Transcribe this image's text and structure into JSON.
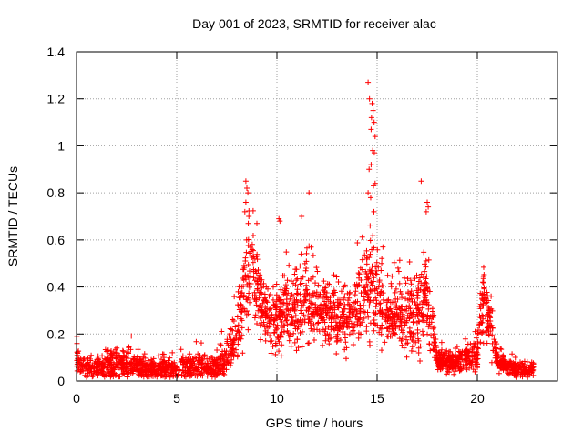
{
  "chart_data": {
    "type": "scatter",
    "title": "Day 001 of 2023, SRMTID for receiver alac",
    "xlabel": "GPS time / hours",
    "ylabel": "SRMTID / TECUs",
    "xlim": [
      0,
      24
    ],
    "ylim": [
      0,
      1.4
    ],
    "x_ticks": [
      0,
      5,
      10,
      15,
      20
    ],
    "x_tick_labels": [
      "0",
      "5",
      "10",
      "15",
      "20"
    ],
    "y_ticks": [
      0,
      0.2,
      0.4,
      0.6,
      0.8,
      1.0,
      1.2,
      1.4
    ],
    "y_tick_labels": [
      "0",
      "0.2",
      "0.4",
      "0.6",
      "0.8",
      "1",
      "1.2",
      "1.4"
    ],
    "grid": true,
    "marker": "+",
    "series": [
      {
        "name": "SRMTID",
        "color": "#ff0000",
        "envelope": {
          "hours": [
            0,
            0.1,
            0.5,
            1,
            1.5,
            2,
            2.5,
            3,
            3.5,
            4,
            4.5,
            5,
            5.5,
            6,
            6.5,
            7,
            7.5,
            7.8,
            8,
            8.2,
            8.4,
            8.6,
            8.8,
            9,
            9.2,
            9.5,
            10,
            10.5,
            11,
            11.5,
            12,
            12.5,
            13,
            13.5,
            14,
            14.3,
            14.6,
            14.8,
            15,
            15.3,
            15.6,
            16,
            16.5,
            17,
            17.2,
            17.4,
            17.6,
            18,
            18.5,
            19,
            19.5,
            20,
            20.2,
            20.4,
            20.6,
            21,
            21.5,
            22,
            22.5,
            22.8
          ],
          "median": [
            0.12,
            0.07,
            0.05,
            0.05,
            0.06,
            0.07,
            0.07,
            0.06,
            0.05,
            0.05,
            0.05,
            0.05,
            0.06,
            0.07,
            0.05,
            0.06,
            0.1,
            0.15,
            0.2,
            0.28,
            0.38,
            0.45,
            0.45,
            0.4,
            0.3,
            0.27,
            0.26,
            0.3,
            0.32,
            0.34,
            0.3,
            0.28,
            0.27,
            0.26,
            0.3,
            0.34,
            0.38,
            0.38,
            0.35,
            0.3,
            0.28,
            0.27,
            0.27,
            0.3,
            0.34,
            0.38,
            0.28,
            0.1,
            0.08,
            0.08,
            0.09,
            0.12,
            0.3,
            0.35,
            0.25,
            0.08,
            0.06,
            0.05,
            0.05,
            0.05
          ],
          "spread": [
            0.06,
            0.04,
            0.03,
            0.03,
            0.04,
            0.04,
            0.05,
            0.04,
            0.03,
            0.03,
            0.03,
            0.03,
            0.04,
            0.04,
            0.03,
            0.03,
            0.05,
            0.06,
            0.08,
            0.1,
            0.14,
            0.15,
            0.13,
            0.12,
            0.1,
            0.08,
            0.1,
            0.11,
            0.12,
            0.12,
            0.1,
            0.1,
            0.09,
            0.09,
            0.1,
            0.12,
            0.14,
            0.14,
            0.12,
            0.1,
            0.09,
            0.09,
            0.1,
            0.11,
            0.14,
            0.14,
            0.1,
            0.04,
            0.03,
            0.04,
            0.04,
            0.06,
            0.1,
            0.1,
            0.08,
            0.03,
            0.02,
            0.02,
            0.02,
            0.02
          ],
          "count": 2600,
          "seed": 42
        },
        "highlight_points": [
          {
            "x": 14.55,
            "y": 1.27
          },
          {
            "x": 14.62,
            "y": 1.2
          },
          {
            "x": 14.75,
            "y": 1.18
          },
          {
            "x": 14.8,
            "y": 1.15
          },
          {
            "x": 14.72,
            "y": 1.12
          },
          {
            "x": 14.85,
            "y": 1.1
          },
          {
            "x": 14.7,
            "y": 1.07
          },
          {
            "x": 14.9,
            "y": 1.04
          },
          {
            "x": 14.78,
            "y": 0.98
          },
          {
            "x": 14.86,
            "y": 0.97
          },
          {
            "x": 14.6,
            "y": 0.9
          },
          {
            "x": 14.7,
            "y": 0.92
          },
          {
            "x": 14.82,
            "y": 0.83
          },
          {
            "x": 14.9,
            "y": 0.84
          },
          {
            "x": 14.55,
            "y": 0.8
          },
          {
            "x": 14.68,
            "y": 0.78
          },
          {
            "x": 14.84,
            "y": 0.72
          },
          {
            "x": 14.65,
            "y": 0.66
          },
          {
            "x": 8.45,
            "y": 0.85
          },
          {
            "x": 8.5,
            "y": 0.82
          },
          {
            "x": 8.55,
            "y": 0.8
          },
          {
            "x": 8.45,
            "y": 0.76
          },
          {
            "x": 8.4,
            "y": 0.72
          },
          {
            "x": 8.6,
            "y": 0.7
          },
          {
            "x": 11.6,
            "y": 0.8
          },
          {
            "x": 17.2,
            "y": 0.85
          },
          {
            "x": 17.5,
            "y": 0.76
          },
          {
            "x": 17.55,
            "y": 0.74
          },
          {
            "x": 17.45,
            "y": 0.72
          },
          {
            "x": 10.1,
            "y": 0.69
          },
          {
            "x": 10.15,
            "y": 0.68
          },
          {
            "x": 9.0,
            "y": 0.67
          }
        ]
      }
    ]
  }
}
